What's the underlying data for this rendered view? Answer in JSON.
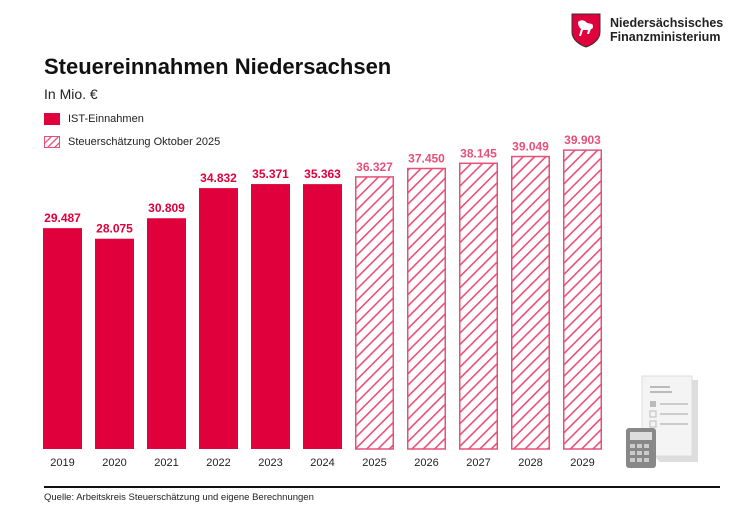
{
  "logo": {
    "line1": "Niedersächsisches",
    "line2": "Finanzministerium"
  },
  "colors": {
    "actual": "#e0003c",
    "forecast": "#e8507a"
  },
  "footer": {
    "source": "Quelle: Arbeitskreis Steuerschätzung und eigene Berechnungen"
  },
  "chart_data": {
    "type": "bar",
    "title": "Steuereinnahmen Niedersachsen",
    "subtitle": "In Mio. €",
    "legend": [
      "IST-Einnahmen",
      "Steuerschätzung Oktober 2025"
    ],
    "categories": [
      "2019",
      "2020",
      "2021",
      "2022",
      "2023",
      "2024",
      "2025",
      "2026",
      "2027",
      "2028",
      "2029"
    ],
    "values": [
      29487,
      28075,
      30809,
      34832,
      35371,
      35363,
      36327,
      37450,
      38145,
      39049,
      39903
    ],
    "labels": [
      "29.487",
      "28.075",
      "30.809",
      "34.832",
      "35.371",
      "35.363",
      "36.327",
      "37.450",
      "38.145",
      "39.049",
      "39.903"
    ],
    "series_type": [
      "IST-Einnahmen",
      "IST-Einnahmen",
      "IST-Einnahmen",
      "IST-Einnahmen",
      "IST-Einnahmen",
      "IST-Einnahmen",
      "Steuerschätzung Oktober 2025",
      "Steuerschätzung Oktober 2025",
      "Steuerschätzung Oktober 2025",
      "Steuerschätzung Oktober 2025",
      "Steuerschätzung Oktober 2025"
    ],
    "ylim": [
      0,
      40000
    ],
    "grid": false,
    "legend_position": "top-left"
  }
}
